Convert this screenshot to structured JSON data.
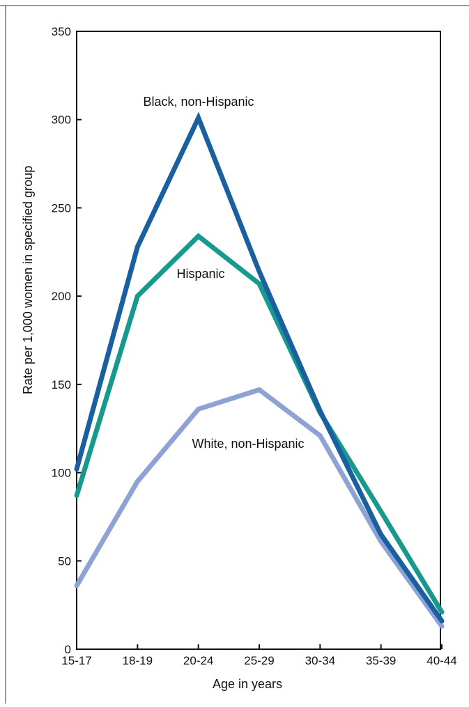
{
  "chart_data": {
    "type": "line",
    "title": "",
    "xlabel": "Age in years",
    "ylabel": "Rate per 1,000 women in specified group",
    "ylim": [
      0,
      350
    ],
    "yticks": [
      0,
      50,
      100,
      150,
      200,
      250,
      300,
      350
    ],
    "categories": [
      "15-17",
      "18-19",
      "20-24",
      "25-29",
      "30-34",
      "35-39",
      "40-44"
    ],
    "grid": false,
    "legend": "none (series labeled directly on lines)",
    "series": [
      {
        "name": "Black, non-Hispanic",
        "color": "#1a5fa0",
        "values": [
          102,
          228,
          301,
          214,
          135,
          65,
          16
        ]
      },
      {
        "name": "Hispanic",
        "color": "#179a8d",
        "values": [
          87,
          200,
          234,
          207,
          134,
          78,
          21
        ]
      },
      {
        "name": "White, non-Hispanic",
        "color": "#8ea3d3",
        "values": [
          36,
          95,
          136,
          147,
          121,
          61,
          13
        ]
      }
    ]
  }
}
